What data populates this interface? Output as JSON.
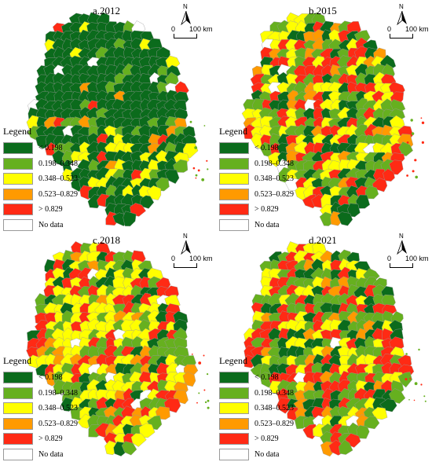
{
  "panels": [
    {
      "title": "a.2012",
      "weights": [
        0.62,
        0.14,
        0.11,
        0.04,
        0.07,
        0.02
      ],
      "seed": 3
    },
    {
      "title": "b.2015",
      "weights": [
        0.18,
        0.28,
        0.22,
        0.08,
        0.22,
        0.02
      ],
      "seed": 7
    },
    {
      "title": "c.2018",
      "weights": [
        0.12,
        0.24,
        0.3,
        0.1,
        0.22,
        0.02
      ],
      "seed": 11
    },
    {
      "title": "d.2021",
      "weights": [
        0.16,
        0.3,
        0.22,
        0.08,
        0.22,
        0.02
      ],
      "seed": 19
    }
  ],
  "legend": {
    "title": "Legend",
    "items": [
      {
        "label": "< 0.198",
        "color": "#0b6b1c"
      },
      {
        "label": "0.198–0.348",
        "color": "#66b01f"
      },
      {
        "label": "0.348–0.523",
        "color": "#ffff00"
      },
      {
        "label": "0.523–0.829",
        "color": "#ff9a00"
      },
      {
        "label": "> 0.829",
        "color": "#ff2a14"
      },
      {
        "label": "No data",
        "color": "#ffffff"
      }
    ]
  },
  "north_label": "N",
  "scale": {
    "zero": "0",
    "distance": "100 km"
  }
}
